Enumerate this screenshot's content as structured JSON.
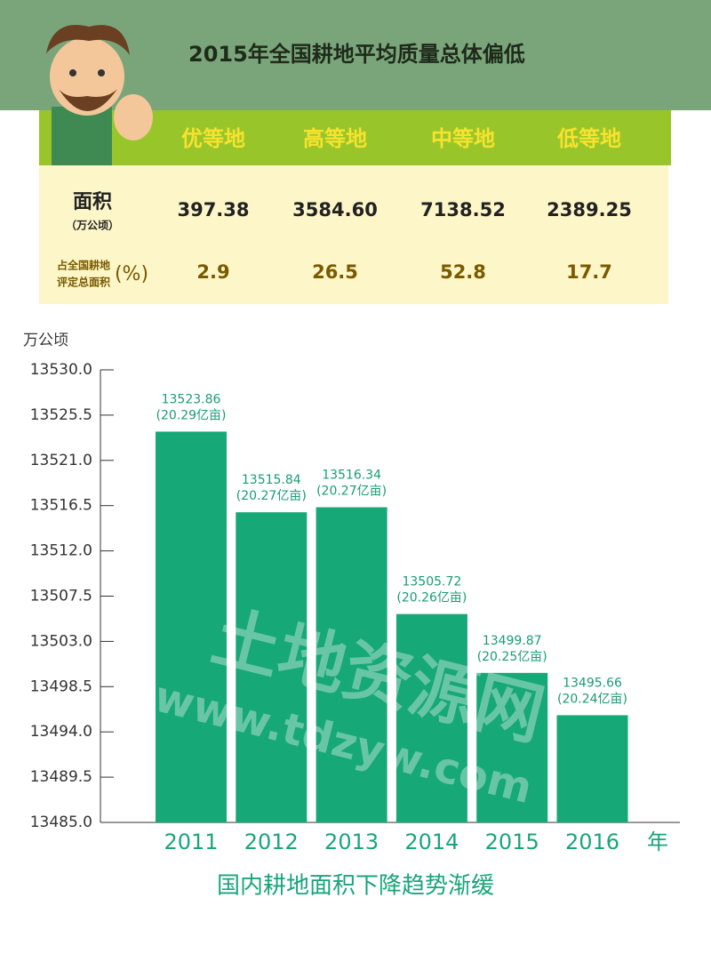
{
  "header": {
    "title": "2015年全国耕地平均质量总体偏低"
  },
  "table": {
    "columns": [
      "优等地",
      "高等地",
      "中等地",
      "低等地"
    ],
    "rows": [
      {
        "label": "面积",
        "sublabel": "（万公顷）",
        "cells": [
          "397.38",
          "3584.60",
          "7138.52",
          "2389.25"
        ]
      },
      {
        "label": "占全国耕地",
        "label2": "评定总面积",
        "unit": "(%)",
        "cells": [
          "2.9",
          "26.5",
          "52.8",
          "17.7"
        ]
      }
    ]
  },
  "chart_data": {
    "type": "bar",
    "y_label": "万公顷",
    "x_label": "年",
    "caption": "国内耕地面积下降趋势渐缓",
    "categories": [
      "2011",
      "2012",
      "2013",
      "2014",
      "2015",
      "2016"
    ],
    "values": [
      13523.86,
      13515.84,
      13516.34,
      13505.72,
      13499.87,
      13495.66
    ],
    "area_labels": [
      "(20.29亿亩)",
      "(20.27亿亩)",
      "(20.27亿亩)",
      "(20.26亿亩)",
      "(20.25亿亩)",
      "(20.24亿亩)"
    ],
    "color": "#17a878",
    "ylim": [
      13485,
      13530
    ],
    "yticks": [
      {
        "value": 13530,
        "label": "13530.0"
      },
      13525.5,
      {
        "value": 13521,
        "label": "13521.0"
      },
      13516.5,
      {
        "value": 13512,
        "label": "13512.0"
      },
      13507.5,
      {
        "value": 13503,
        "label": "13503.0"
      },
      13498.5,
      {
        "value": 13494,
        "label": "13494.0"
      },
      13489.5,
      {
        "value": 13485,
        "label": "13485.0"
      }
    ]
  },
  "watermark": {
    "name": "土地资源网",
    "url": "www.tdzyw.com"
  }
}
